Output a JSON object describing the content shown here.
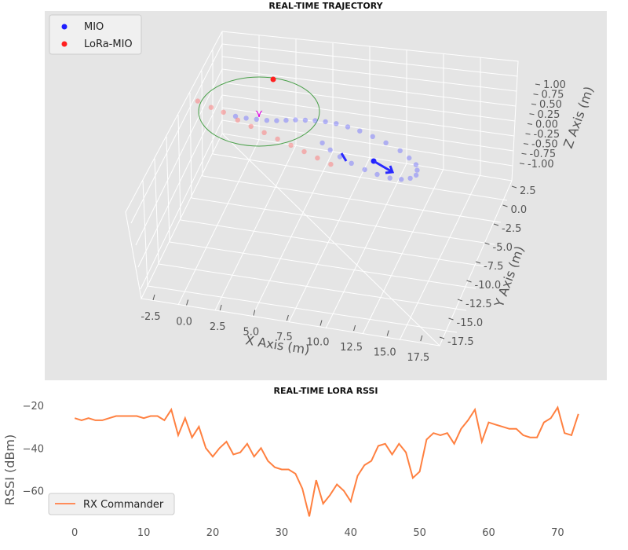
{
  "chart_data": [
    {
      "type": "scatter",
      "title": "REAL-TIME TRAJECTORY",
      "xlabel": "X Axis (m)",
      "ylabel": "Y Axis (m)",
      "zlabel": "Z Axis (m)",
      "x_ticks": [
        "-2.5",
        "0.0",
        "2.5",
        "5.0",
        "7.5",
        "10.0",
        "12.5",
        "15.0",
        "17.5"
      ],
      "y_ticks": [
        "2.5",
        "0.0",
        "-2.5",
        "-5.0",
        "-7.5",
        "-10.0",
        "-12.5",
        "-15.0",
        "-17.5"
      ],
      "z_ticks": [
        "1.00",
        "0.75",
        "0.50",
        "0.25",
        "0.00",
        "-0.25",
        "-0.50",
        "-0.75",
        "-1.00"
      ],
      "legend": [
        {
          "label": "MIO",
          "color": "#1f1fff"
        },
        {
          "label": "LoRa-MIO",
          "color": "#ff1f1f"
        }
      ],
      "series": [
        {
          "name": "MIO",
          "color": "#6b6bff",
          "screen_note": "trajectory points (data approximated)",
          "points": [
            [
              0,
              0
            ],
            [
              1,
              0.1
            ],
            [
              2,
              0.3
            ],
            [
              3,
              0.5
            ],
            [
              4,
              0.8
            ],
            [
              5,
              1.2
            ],
            [
              6,
              1.6
            ],
            [
              7,
              1.9
            ],
            [
              8,
              2.2
            ],
            [
              9,
              2.4
            ],
            [
              10,
              2.5
            ],
            [
              11,
              2.4
            ],
            [
              12,
              2.2
            ],
            [
              13,
              1.8
            ],
            [
              14,
              1.3
            ],
            [
              15,
              0.6
            ],
            [
              15.5,
              -0.2
            ],
            [
              15.8,
              -1.0
            ],
            [
              15.6,
              -1.8
            ],
            [
              15.2,
              -2.6
            ],
            [
              14.4,
              -3.3
            ],
            [
              13.4,
              -3.8
            ],
            [
              12.3,
              -4.0
            ],
            [
              11.2,
              -3.9
            ],
            [
              10.2,
              -3.6
            ],
            [
              9.2,
              -3.1
            ],
            [
              8.4,
              -2.5
            ],
            [
              7.8,
              -1.8
            ],
            [
              7.4,
              -1.0
            ]
          ]
        },
        {
          "name": "LoRa-MIO",
          "color": "#ff6b6b",
          "points": [
            [
              -3,
              1
            ],
            [
              -2,
              0.5
            ],
            [
              -1,
              0.2
            ],
            [
              0,
              -0.5
            ],
            [
              1,
              -1
            ],
            [
              2,
              -1.5
            ],
            [
              3,
              -2
            ],
            [
              4,
              -2.5
            ],
            [
              5,
              -3
            ],
            [
              6,
              -3.5
            ],
            [
              7,
              -4
            ]
          ]
        }
      ]
    },
    {
      "type": "line",
      "title": "REAL-TIME LORA RSSI",
      "xlabel": "",
      "ylabel": "RSSI (dBm)",
      "xlim": [
        -4,
        74.5
      ],
      "ylim": [
        -73,
        -16
      ],
      "x_ticks": [
        0,
        10,
        20,
        30,
        40,
        50,
        60,
        70
      ],
      "y_ticks": [
        -20,
        -40,
        -60
      ],
      "legend": [
        {
          "label": "RX Commander",
          "color": "#ff8040"
        }
      ],
      "series": [
        {
          "name": "RX Commander",
          "color": "#ff8040",
          "x": [
            0,
            1,
            2,
            3,
            4,
            5,
            6,
            7,
            8,
            9,
            10,
            11,
            12,
            13,
            14,
            15,
            16,
            17,
            18,
            19,
            20,
            21,
            22,
            23,
            24,
            25,
            26,
            27,
            28,
            29,
            30,
            31,
            32,
            33,
            34,
            35,
            36,
            37,
            38,
            39,
            40,
            41,
            42,
            43,
            44,
            45,
            46,
            47,
            48,
            49,
            50,
            51,
            52,
            53,
            54,
            55,
            56,
            57,
            58,
            59,
            60,
            61,
            62,
            63,
            64,
            65,
            66,
            67,
            68,
            69,
            70,
            71,
            72,
            73
          ],
          "values": [
            -26,
            -27,
            -26,
            -27,
            -27,
            -26,
            -25,
            -25,
            -25,
            -25,
            -26,
            -25,
            -25,
            -27,
            -22,
            -34,
            -26,
            -35,
            -30,
            -40,
            -44,
            -40,
            -37,
            -43,
            -42,
            -38,
            -44,
            -40,
            -46,
            -49,
            -50,
            -50,
            -52,
            -59,
            -72,
            -55,
            -66,
            -62,
            -57,
            -60,
            -65,
            -53,
            -48,
            -46,
            -39,
            -38,
            -43,
            -38,
            -42,
            -54,
            -51,
            -36,
            -33,
            -34,
            -33,
            -38,
            -31,
            -27,
            -22,
            -37,
            -28,
            -29,
            -30,
            -31,
            -31,
            -34,
            -35,
            -35,
            -28,
            -26,
            -21,
            -33,
            -34,
            -24
          ]
        }
      ]
    }
  ]
}
